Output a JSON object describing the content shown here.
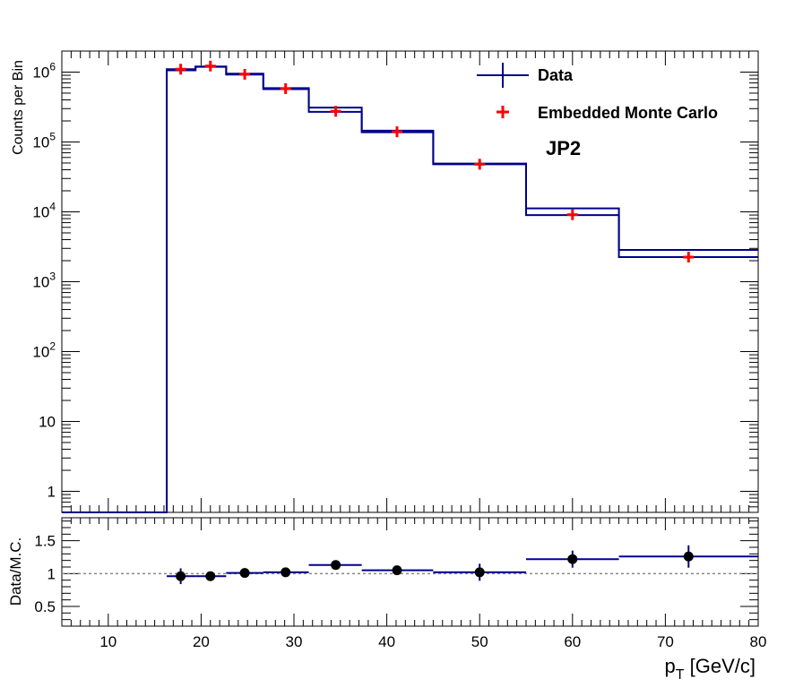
{
  "chart_data": [
    {
      "type": "step",
      "title": "",
      "ylabel": "Counts per Bin",
      "yscale": "log",
      "xlim": [
        5,
        80
      ],
      "ylim": [
        0.5,
        2000000
      ],
      "annotation": "JP2",
      "legend": {
        "placement": "top-right",
        "entries": [
          {
            "label": "Data",
            "color": "#00008b",
            "marker": "errorbar"
          },
          {
            "label": "Embedded Monte Carlo",
            "color": "#ff0000",
            "marker": "cross"
          }
        ]
      },
      "y_ticks": [
        {
          "value": 1,
          "base": "1",
          "exp": ""
        },
        {
          "value": 10,
          "base": "10",
          "exp": ""
        },
        {
          "value": 100,
          "base": "10",
          "exp": "2"
        },
        {
          "value": 1000,
          "base": "10",
          "exp": "3"
        },
        {
          "value": 10000,
          "base": "10",
          "exp": "4"
        },
        {
          "value": 100000,
          "base": "10",
          "exp": "5"
        },
        {
          "value": 1000000,
          "base": "10",
          "exp": "6"
        }
      ],
      "series": [
        {
          "name": "Data",
          "color": "#00008b",
          "style": "step",
          "bin_edges": [
            5,
            16.3,
            19.4,
            22.7,
            26.7,
            31.6,
            37.3,
            45.0,
            55.0,
            65.0,
            80.0
          ],
          "values": [
            0.5,
            1100000,
            1200000,
            950000,
            590000,
            310000,
            145000,
            49000,
            11200,
            2850
          ]
        },
        {
          "name": "Embedded Monte Carlo",
          "color": "#ff0000",
          "style": "step-with-markers",
          "bin_edges": [
            5,
            16.3,
            19.4,
            22.7,
            26.7,
            31.6,
            37.3,
            45.0,
            55.0,
            65.0,
            80.0
          ],
          "values": [
            0.5,
            1060000,
            1190000,
            920000,
            570000,
            270000,
            138000,
            48000,
            9000,
            2250
          ],
          "marker_x": [
            17.8,
            21.0,
            24.7,
            29.1,
            34.5,
            41.1,
            50.0,
            60.0,
            72.5
          ],
          "marker_y": [
            1100000,
            1220000,
            930000,
            580000,
            275000,
            140000,
            48000,
            9100,
            2250
          ]
        }
      ]
    },
    {
      "type": "scatter",
      "ylabel": "Data/M.C.",
      "xlabel_main": "p",
      "xlabel_sub": "T",
      "xlabel_unit": " [GeV/c]",
      "xlim": [
        5,
        80
      ],
      "ylim": [
        0.2,
        1.85
      ],
      "x_ticks": [
        10,
        20,
        30,
        40,
        50,
        60,
        70,
        80
      ],
      "y_ticks": [
        "0.5",
        "1",
        "1.5"
      ],
      "reference_line": 1,
      "series": [
        {
          "name": "Data/M.C.",
          "color": "#000000",
          "x": [
            17.8,
            21.0,
            24.7,
            29.1,
            34.5,
            41.1,
            50.0,
            60.0,
            72.5
          ],
          "y": [
            0.96,
            0.96,
            1.01,
            1.02,
            1.13,
            1.05,
            1.02,
            1.22,
            1.26
          ],
          "yerr": [
            0.12,
            0.06,
            0.06,
            0.07,
            0.05,
            0.04,
            0.13,
            0.13,
            0.17
          ],
          "x_lo": [
            16.3,
            19.4,
            22.7,
            26.7,
            31.6,
            37.3,
            45.0,
            55.0,
            65.0
          ],
          "x_hi": [
            19.4,
            22.7,
            26.7,
            31.6,
            37.3,
            45.0,
            55.0,
            65.0,
            80.0
          ]
        }
      ]
    }
  ]
}
